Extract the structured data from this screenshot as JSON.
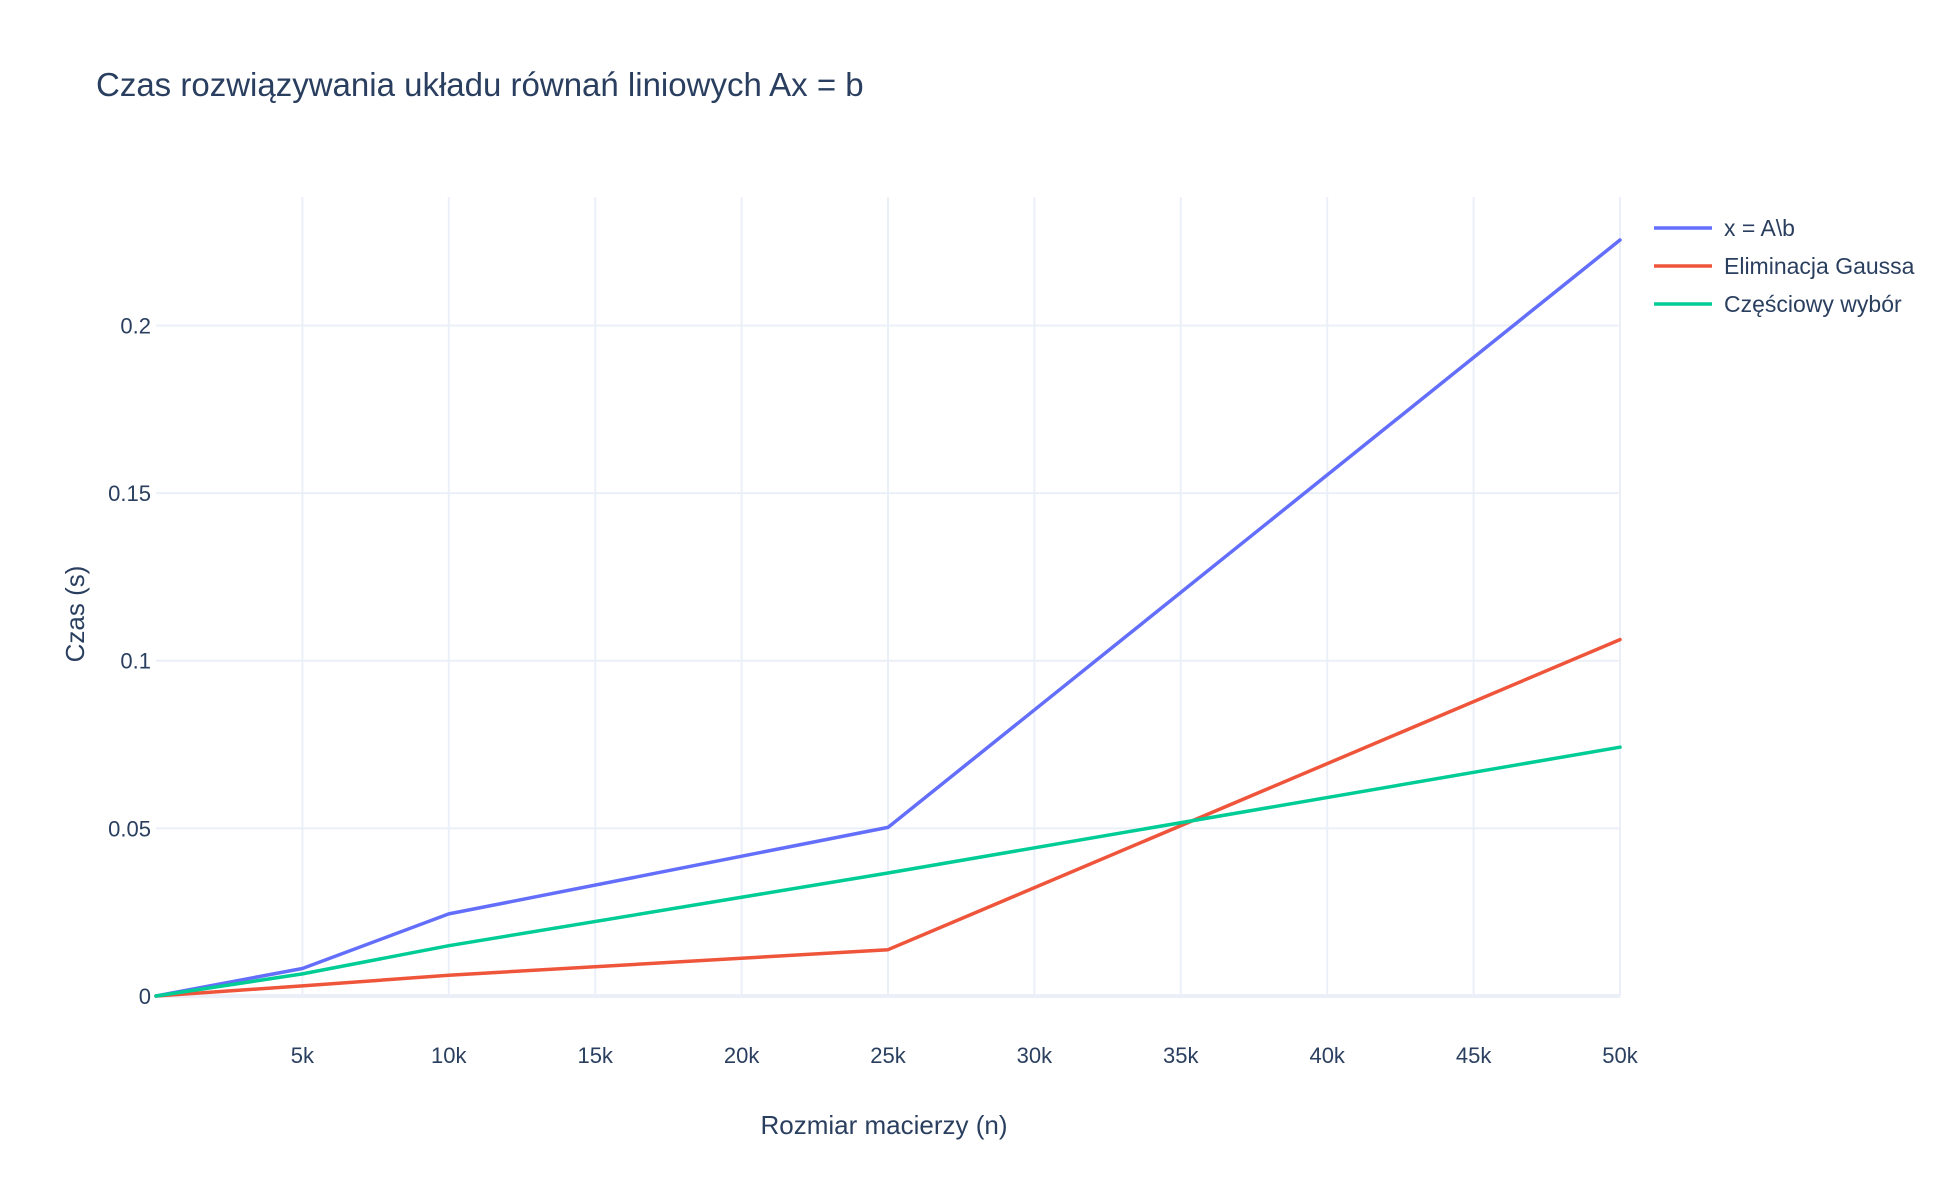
{
  "chart_data": {
    "type": "line",
    "title": "Czas rozwiązywania układu równań liniowych Ax = b",
    "xlabel": "Rozmiar macierzy (n)",
    "ylabel": "Czas (s)",
    "xlim": [
      0,
      50000
    ],
    "ylim": [
      0,
      0.2255
    ],
    "grid": true,
    "legend_position": "top-right",
    "x_ticks": [
      {
        "value": 5000,
        "label": "5k"
      },
      {
        "value": 10000,
        "label": "10k"
      },
      {
        "value": 15000,
        "label": "15k"
      },
      {
        "value": 20000,
        "label": "20k"
      },
      {
        "value": 25000,
        "label": "25k"
      },
      {
        "value": 30000,
        "label": "30k"
      },
      {
        "value": 35000,
        "label": "35k"
      },
      {
        "value": 40000,
        "label": "40k"
      },
      {
        "value": 45000,
        "label": "45k"
      },
      {
        "value": 50000,
        "label": "50k"
      }
    ],
    "y_ticks": [
      {
        "value": 0,
        "label": "0"
      },
      {
        "value": 0.05,
        "label": "0.05"
      },
      {
        "value": 0.1,
        "label": "0.1"
      },
      {
        "value": 0.15,
        "label": "0.15"
      },
      {
        "value": 0.2,
        "label": "0.2"
      }
    ],
    "x": [
      0,
      5000,
      10000,
      25000,
      50000
    ],
    "series": [
      {
        "name": "x = A\\b",
        "color": "#636efa",
        "values": [
          0,
          0.0082,
          0.0245,
          0.0503,
          0.2255
        ]
      },
      {
        "name": "Eliminacja Gaussa",
        "color": "#ef553b",
        "values": [
          0,
          0.003,
          0.0062,
          0.0138,
          0.1063
        ]
      },
      {
        "name": "Częściowy wybór",
        "color": "#00cc96",
        "values": [
          0,
          0.0066,
          0.015,
          0.0367,
          0.0742
        ]
      }
    ]
  }
}
